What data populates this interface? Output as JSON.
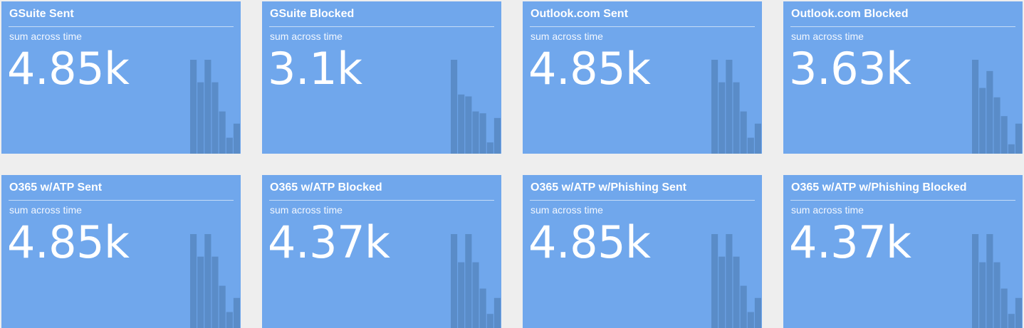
{
  "tiles": [
    {
      "title": "GSuite Sent",
      "subtitle": "sum across time",
      "value": "4.85k",
      "spark": [
        100,
        76,
        100,
        76,
        45,
        17,
        32
      ]
    },
    {
      "title": "GSuite Blocked",
      "subtitle": "sum across time",
      "value": "3.1k",
      "spark": [
        100,
        63,
        61,
        45,
        43,
        12,
        38
      ]
    },
    {
      "title": "Outlook.com Sent",
      "subtitle": "sum across time",
      "value": "4.85k",
      "spark": [
        100,
        76,
        100,
        76,
        45,
        17,
        32
      ]
    },
    {
      "title": "Outlook.com Blocked",
      "subtitle": "sum across time",
      "value": "3.63k",
      "spark": [
        100,
        70,
        88,
        60,
        40,
        10,
        32
      ]
    },
    {
      "title": "O365 w/ATP Sent",
      "subtitle": "sum across time",
      "value": "4.85k",
      "spark": [
        100,
        76,
        100,
        76,
        45,
        17,
        32
      ]
    },
    {
      "title": "O365 w/ATP Blocked",
      "subtitle": "sum across time",
      "value": "4.37k",
      "spark": [
        100,
        70,
        100,
        70,
        42,
        15,
        32
      ]
    },
    {
      "title": "O365 w/ATP w/Phishing Sent",
      "subtitle": "sum across time",
      "value": "4.85k",
      "spark": [
        100,
        76,
        100,
        76,
        45,
        17,
        32
      ]
    },
    {
      "title": "O365 w/ATP w/Phishing Blocked",
      "subtitle": "sum across time",
      "value": "4.37k",
      "spark": [
        100,
        70,
        100,
        70,
        42,
        15,
        32
      ]
    }
  ]
}
